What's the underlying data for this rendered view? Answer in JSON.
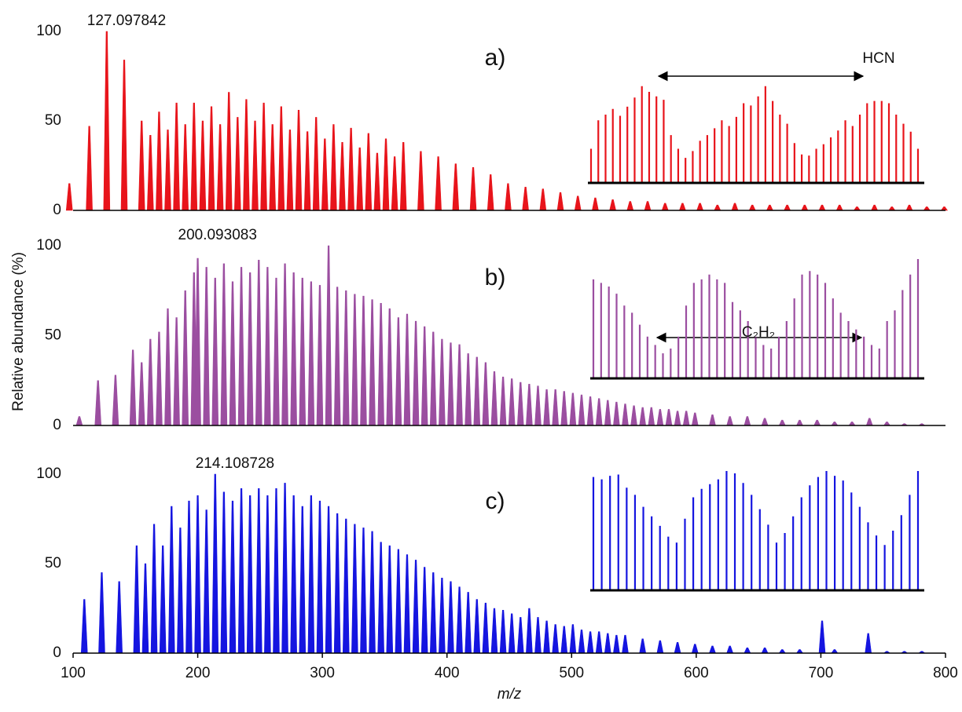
{
  "chart_data": [
    {
      "type": "spectrum",
      "label": "a)",
      "color": "#e8141b",
      "xlim": [
        100,
        800
      ],
      "ylim": [
        0,
        100
      ],
      "yticks": [
        0,
        50,
        100
      ],
      "annotation": {
        "label": "127.097842",
        "value": 127.097842
      },
      "x": [
        97,
        113,
        127,
        141,
        155,
        162,
        169,
        176,
        183,
        190,
        197,
        204,
        211,
        218,
        225,
        232,
        239,
        246,
        253,
        260,
        267,
        274,
        281,
        288,
        295,
        302,
        309,
        316,
        323,
        330,
        337,
        344,
        351,
        358,
        365,
        379,
        393,
        407,
        421,
        435,
        449,
        463,
        477,
        491,
        505,
        519,
        533,
        547,
        561,
        575,
        589,
        603,
        617,
        631,
        645,
        659,
        673,
        687,
        701,
        715,
        729,
        743,
        757,
        771,
        785,
        799
      ],
      "values": [
        15,
        47,
        100,
        84,
        50,
        42,
        55,
        45,
        60,
        48,
        60,
        50,
        58,
        48,
        66,
        52,
        62,
        50,
        60,
        48,
        58,
        45,
        56,
        44,
        52,
        40,
        48,
        38,
        46,
        35,
        43,
        32,
        40,
        30,
        38,
        33,
        30,
        26,
        24,
        20,
        15,
        13,
        12,
        10,
        8,
        7,
        6,
        5,
        5,
        4,
        4,
        4,
        3,
        4,
        3,
        3,
        3,
        3,
        3,
        3,
        2,
        3,
        2,
        3,
        2,
        2
      ],
      "inset": {
        "annotation": "HCN",
        "values": [
          30,
          55,
          60,
          65,
          59,
          67,
          75,
          85,
          80,
          76,
          73,
          42,
          30,
          22,
          28,
          37,
          42,
          48,
          55,
          50,
          58,
          70,
          68,
          76,
          85,
          72,
          60,
          52,
          35,
          25,
          24,
          30,
          34,
          40,
          46,
          55,
          50,
          60,
          70,
          72,
          72,
          70,
          60,
          52,
          45,
          30
        ]
      }
    },
    {
      "type": "spectrum",
      "label": "b)",
      "color": "#9b4ea0",
      "xlim": [
        100,
        800
      ],
      "ylim": [
        0,
        100
      ],
      "yticks": [
        0,
        50,
        100
      ],
      "ylabel": "Relative abundance (%)",
      "annotation": {
        "label": "200.093083",
        "value": 200.093083
      },
      "x": [
        105,
        120,
        134,
        148,
        155,
        162,
        169,
        176,
        183,
        190,
        197,
        200,
        207,
        214,
        221,
        228,
        235,
        242,
        249,
        256,
        263,
        270,
        277,
        284,
        291,
        298,
        305,
        312,
        319,
        326,
        333,
        340,
        347,
        354,
        361,
        368,
        375,
        382,
        389,
        396,
        403,
        410,
        417,
        424,
        431,
        438,
        445,
        452,
        459,
        466,
        473,
        480,
        487,
        494,
        501,
        508,
        515,
        522,
        529,
        536,
        543,
        550,
        557,
        564,
        571,
        578,
        585,
        592,
        599,
        613,
        627,
        641,
        655,
        669,
        683,
        697,
        711,
        725,
        739,
        753,
        767,
        781
      ],
      "values": [
        5,
        25,
        28,
        42,
        35,
        48,
        52,
        65,
        60,
        75,
        85,
        93,
        88,
        82,
        90,
        80,
        88,
        85,
        92,
        88,
        82,
        90,
        85,
        82,
        80,
        78,
        100,
        77,
        75,
        73,
        72,
        70,
        68,
        65,
        60,
        62,
        58,
        55,
        52,
        48,
        46,
        45,
        40,
        38,
        35,
        30,
        27,
        26,
        24,
        23,
        22,
        20,
        20,
        19,
        18,
        17,
        16,
        15,
        14,
        13,
        12,
        11,
        10,
        10,
        9,
        9,
        8,
        8,
        7,
        6,
        5,
        5,
        4,
        3,
        3,
        3,
        2,
        2,
        4,
        2,
        1,
        1
      ],
      "inset": {
        "annotation": "C₂H₂",
        "values": [
          83,
          80,
          77,
          71,
          61,
          55,
          45,
          35,
          28,
          21,
          25,
          35,
          61,
          80,
          83,
          87,
          83,
          80,
          64,
          57,
          48,
          35,
          28,
          25,
          35,
          48,
          67,
          87,
          90,
          87,
          80,
          67,
          55,
          48,
          41,
          35,
          28,
          25,
          48,
          57,
          74,
          87,
          100
        ]
      }
    },
    {
      "type": "spectrum",
      "label": "c)",
      "color": "#1515e0",
      "xlim": [
        100,
        800
      ],
      "ylim": [
        0,
        100
      ],
      "yticks": [
        0,
        50,
        100
      ],
      "xticks": [
        100,
        200,
        300,
        400,
        500,
        600,
        700,
        800
      ],
      "xlabel": "m/z",
      "annotation": {
        "label": "214.108728",
        "value": 214.108728
      },
      "x": [
        109,
        123,
        137,
        151,
        158,
        165,
        172,
        179,
        186,
        193,
        200,
        207,
        214,
        221,
        228,
        235,
        242,
        249,
        256,
        263,
        270,
        277,
        284,
        291,
        298,
        305,
        312,
        319,
        326,
        333,
        340,
        347,
        354,
        361,
        368,
        375,
        382,
        389,
        396,
        403,
        410,
        417,
        424,
        431,
        438,
        445,
        452,
        459,
        466,
        473,
        480,
        487,
        494,
        501,
        508,
        515,
        522,
        529,
        536,
        543,
        557,
        571,
        585,
        599,
        613,
        627,
        641,
        655,
        669,
        683,
        701,
        711,
        738,
        753,
        767,
        781
      ],
      "values": [
        30,
        45,
        40,
        60,
        50,
        72,
        60,
        82,
        70,
        85,
        88,
        80,
        100,
        90,
        85,
        92,
        88,
        92,
        88,
        92,
        95,
        88,
        82,
        88,
        85,
        82,
        78,
        75,
        72,
        70,
        68,
        62,
        60,
        58,
        55,
        52,
        48,
        45,
        42,
        40,
        37,
        34,
        30,
        28,
        25,
        24,
        22,
        20,
        25,
        20,
        18,
        16,
        15,
        16,
        13,
        12,
        12,
        11,
        10,
        10,
        8,
        7,
        6,
        5,
        4,
        4,
        3,
        3,
        2,
        2,
        18,
        2,
        11,
        1,
        1,
        1
      ],
      "inset": {
        "values": [
          95,
          93,
          96,
          97,
          86,
          80,
          70,
          62,
          54,
          45,
          40,
          60,
          78,
          85,
          89,
          93,
          100,
          98,
          90,
          80,
          68,
          55,
          40,
          48,
          62,
          78,
          88,
          95,
          100,
          96,
          92,
          82,
          70,
          57,
          46,
          38,
          50,
          63,
          80,
          100
        ]
      }
    }
  ]
}
